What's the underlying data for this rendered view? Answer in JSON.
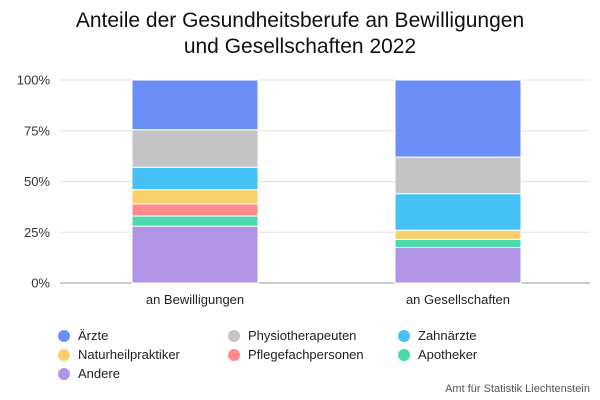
{
  "title_lines": [
    "Anteile der Gesundheitsberufe an Bewilligungen",
    "und Gesellschaften 2022"
  ],
  "source": "Amt für Statistik Liechtenstein",
  "chart_data": {
    "type": "bar",
    "stacked": true,
    "percent": true,
    "categories": [
      "an Bewilligungen",
      "an Gesellschaften"
    ],
    "y_ticks": [
      "0%",
      "25%",
      "50%",
      "75%",
      "100%"
    ],
    "ylim": [
      0,
      100
    ],
    "grid": true,
    "legend_position": "bottom",
    "series": [
      {
        "name": "Andere",
        "color": "#b095e6",
        "values": [
          28,
          17.5
        ]
      },
      {
        "name": "Apotheker",
        "color": "#4ad9ad",
        "values": [
          5,
          4
        ]
      },
      {
        "name": "Pflegefachpersonen",
        "color": "#ff8a8a",
        "values": [
          6,
          0
        ]
      },
      {
        "name": "Naturheilpraktiker",
        "color": "#f7d06b",
        "values": [
          7,
          4.5
        ]
      },
      {
        "name": "Zahnärzte",
        "color": "#45c2f5",
        "values": [
          11,
          18
        ]
      },
      {
        "name": "Physiotherapeuten",
        "color": "#c4c4c4",
        "values": [
          18.5,
          18
        ]
      },
      {
        "name": "Ärzte",
        "color": "#6b8ff7",
        "values": [
          24.5,
          38
        ]
      }
    ],
    "legend_order": [
      "Ärzte",
      "Physiotherapeuten",
      "Zahnärzte",
      "Naturheilpraktiker",
      "Pflegefachpersonen",
      "Apotheker",
      "Andere"
    ]
  }
}
